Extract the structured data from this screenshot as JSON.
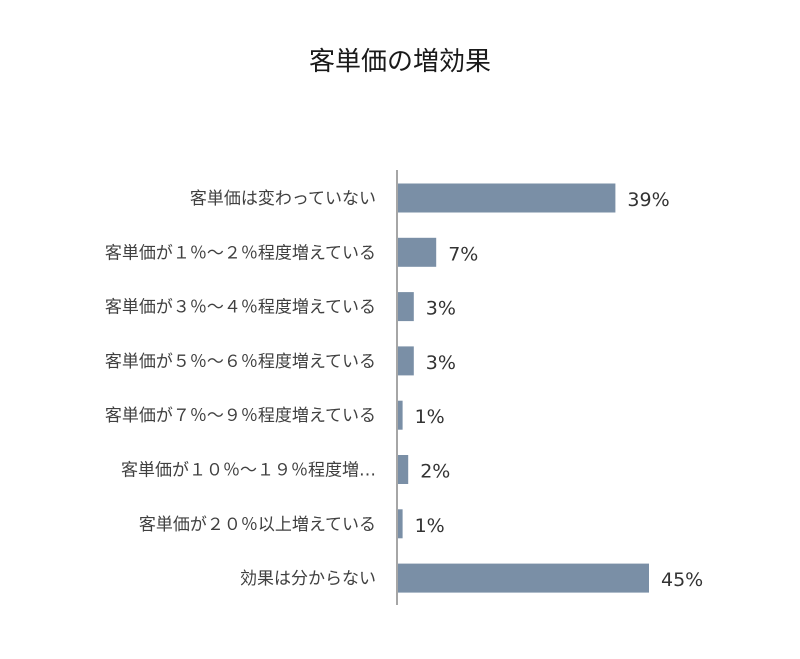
{
  "chart_data": {
    "type": "bar",
    "orientation": "horizontal",
    "title": "客単価の増効果",
    "xlabel": "",
    "ylabel": "",
    "categories": [
      "客単価は変わっていない",
      "客単価が１％～２％程度増えている",
      "客単価が３％～４％程度増えている",
      "客単価が５％～６％程度増えている",
      "客単価が７％～９％程度増えている",
      "客単価が１０％～１９％程度増…",
      "客単価が２０％以上増えている",
      "効果は分からない"
    ],
    "values": [
      39,
      7,
      3,
      3,
      1,
      2,
      1,
      45
    ],
    "data_labels": [
      "39%",
      "7%",
      "3%",
      "3%",
      "1%",
      "2%",
      "1%",
      "45%"
    ],
    "unit": "%",
    "xlim": [
      0,
      45
    ],
    "grid": false,
    "legend": "none",
    "colors": {
      "bar": "#7a8fa6",
      "axis": "#a6a6a6",
      "title": "#1a1a1a",
      "category_text": "#404040",
      "value_text": "#333333"
    }
  }
}
